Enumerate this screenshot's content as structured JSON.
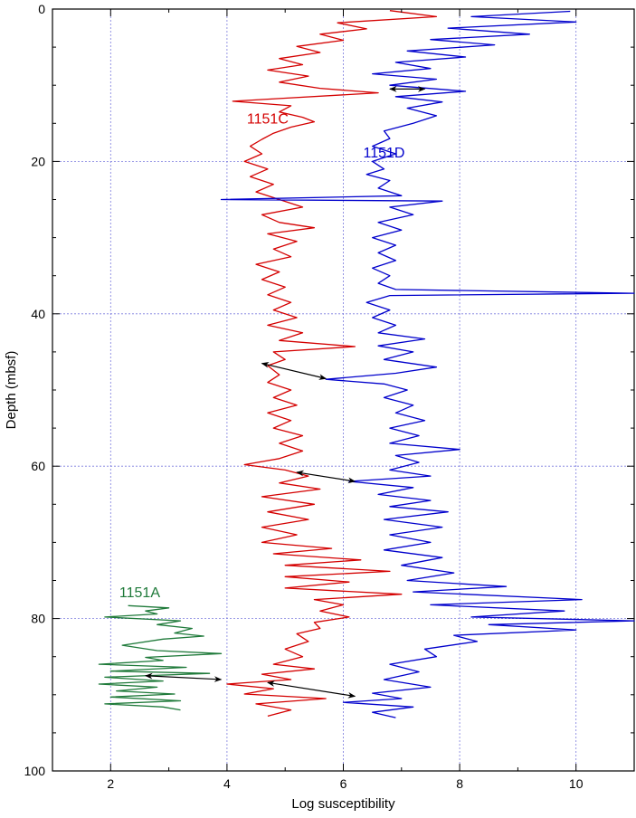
{
  "chart_data": {
    "type": "line",
    "title": "",
    "xlabel": "Log susceptibility",
    "ylabel": "Depth (mbsf)",
    "xlim": [
      1,
      11
    ],
    "ylim": [
      100,
      0
    ],
    "x_ticks": [
      2,
      4,
      6,
      8,
      10
    ],
    "y_ticks": [
      0,
      20,
      40,
      60,
      80,
      100
    ],
    "grid": true,
    "orientation": "x=value, y=depth (depth increases downward)",
    "colors": {
      "1151A": "#1f7a3a",
      "1151C": "#d40000",
      "1151D": "#0000cc",
      "grid": "#7b7bdd",
      "arrow": "#000000"
    },
    "series": [
      {
        "name": "1151C",
        "color": "#d40000",
        "points": [
          [
            6.8,
            0.2
          ],
          [
            7.6,
            1
          ],
          [
            5.9,
            1.8
          ],
          [
            6.4,
            2.6
          ],
          [
            5.6,
            3.3
          ],
          [
            6.0,
            4.1
          ],
          [
            5.2,
            4.9
          ],
          [
            5.6,
            5.7
          ],
          [
            4.9,
            6.5
          ],
          [
            5.3,
            7.3
          ],
          [
            4.7,
            8.0
          ],
          [
            5.4,
            8.8
          ],
          [
            4.9,
            9.6
          ],
          [
            5.6,
            10.4
          ],
          [
            6.6,
            11.0
          ],
          [
            5.0,
            11.7
          ],
          [
            4.1,
            12.1
          ],
          [
            5.1,
            12.7
          ],
          [
            4.9,
            13.5
          ],
          [
            5.3,
            14.2
          ],
          [
            5.5,
            14.8
          ],
          [
            5.1,
            15.5
          ],
          [
            4.8,
            16.3
          ],
          [
            4.6,
            17.1
          ],
          [
            4.4,
            18.0
          ],
          [
            4.6,
            19.0
          ],
          [
            4.3,
            20.0
          ],
          [
            4.7,
            21.0
          ],
          [
            4.4,
            22.0
          ],
          [
            4.8,
            23.0
          ],
          [
            4.5,
            24.0
          ],
          [
            4.9,
            25.0
          ],
          [
            5.3,
            26.0
          ],
          [
            4.6,
            27.0
          ],
          [
            4.9,
            28.0
          ],
          [
            5.5,
            28.7
          ],
          [
            4.7,
            29.5
          ],
          [
            5.2,
            30.5
          ],
          [
            4.8,
            31.5
          ],
          [
            5.1,
            32.5
          ],
          [
            4.5,
            33.5
          ],
          [
            4.9,
            34.5
          ],
          [
            4.6,
            35.5
          ],
          [
            5.0,
            36.5
          ],
          [
            4.7,
            37.5
          ],
          [
            5.1,
            38.5
          ],
          [
            4.8,
            39.5
          ],
          [
            5.2,
            40.5
          ],
          [
            4.7,
            41.5
          ],
          [
            5.3,
            42.5
          ],
          [
            4.9,
            43.5
          ],
          [
            6.2,
            44.3
          ],
          [
            4.8,
            45.0
          ],
          [
            5.0,
            46.0
          ],
          [
            4.7,
            46.8
          ],
          [
            4.9,
            48.0
          ],
          [
            4.7,
            49.0
          ],
          [
            5.1,
            50.0
          ],
          [
            4.8,
            51.0
          ],
          [
            5.2,
            52.0
          ],
          [
            4.7,
            53.0
          ],
          [
            5.1,
            54.0
          ],
          [
            4.8,
            55.0
          ],
          [
            5.3,
            56.0
          ],
          [
            4.9,
            57.0
          ],
          [
            5.3,
            58.0
          ],
          [
            4.9,
            59.0
          ],
          [
            4.3,
            59.8
          ],
          [
            5.0,
            60.5
          ],
          [
            5.4,
            61.3
          ],
          [
            4.9,
            62.2
          ],
          [
            5.6,
            63.0
          ],
          [
            4.6,
            64.0
          ],
          [
            5.5,
            65.0
          ],
          [
            4.7,
            66.0
          ],
          [
            5.4,
            67.0
          ],
          [
            4.6,
            68.0
          ],
          [
            5.2,
            69.0
          ],
          [
            4.6,
            70.0
          ],
          [
            5.8,
            70.8
          ],
          [
            4.8,
            71.5
          ],
          [
            6.3,
            72.3
          ],
          [
            5.0,
            73.0
          ],
          [
            6.8,
            73.8
          ],
          [
            5.0,
            74.5
          ],
          [
            6.1,
            75.2
          ],
          [
            5.0,
            76.0
          ],
          [
            7.0,
            76.8
          ],
          [
            5.5,
            77.5
          ],
          [
            6.0,
            78.2
          ],
          [
            5.6,
            79.0
          ],
          [
            6.1,
            79.8
          ],
          [
            5.5,
            80.5
          ],
          [
            5.6,
            81.3
          ],
          [
            5.2,
            82.0
          ],
          [
            5.4,
            83.0
          ],
          [
            5.0,
            84.0
          ],
          [
            5.3,
            85.0
          ],
          [
            4.8,
            86.0
          ],
          [
            5.5,
            86.6
          ],
          [
            4.6,
            87.3
          ],
          [
            5.1,
            88.0
          ],
          [
            4.0,
            88.6
          ],
          [
            4.8,
            89.2
          ],
          [
            4.3,
            89.9
          ],
          [
            5.7,
            90.5
          ],
          [
            4.5,
            91.2
          ],
          [
            5.1,
            92.0
          ],
          [
            4.7,
            92.8
          ]
        ]
      },
      {
        "name": "1151D",
        "color": "#0000cc",
        "points": [
          [
            9.9,
            0.3
          ],
          [
            8.2,
            1.0
          ],
          [
            10.0,
            1.7
          ],
          [
            7.8,
            2.5
          ],
          [
            9.2,
            3.3
          ],
          [
            7.5,
            4.0
          ],
          [
            8.6,
            4.7
          ],
          [
            7.1,
            5.5
          ],
          [
            8.1,
            6.3
          ],
          [
            6.9,
            7.0
          ],
          [
            7.5,
            7.8
          ],
          [
            6.5,
            8.5
          ],
          [
            7.6,
            9.2
          ],
          [
            6.8,
            10.0
          ],
          [
            8.1,
            10.8
          ],
          [
            6.9,
            11.5
          ],
          [
            7.7,
            12.2
          ],
          [
            7.1,
            13.0
          ],
          [
            7.6,
            14.0
          ],
          [
            7.2,
            15.0
          ],
          [
            6.7,
            16.0
          ],
          [
            6.8,
            17.0
          ],
          [
            6.5,
            18.0
          ],
          [
            6.9,
            19.0
          ],
          [
            6.5,
            20.0
          ],
          [
            6.7,
            21.0
          ],
          [
            6.4,
            21.7
          ],
          [
            6.8,
            22.5
          ],
          [
            6.6,
            23.5
          ],
          [
            7.0,
            24.5
          ],
          [
            3.9,
            25.0
          ],
          [
            7.7,
            25.2
          ],
          [
            6.8,
            26.0
          ],
          [
            7.2,
            27.0
          ],
          [
            6.6,
            28.0
          ],
          [
            7.0,
            29.0
          ],
          [
            6.5,
            30.0
          ],
          [
            6.9,
            31.0
          ],
          [
            6.6,
            32.0
          ],
          [
            6.9,
            33.0
          ],
          [
            6.5,
            34.0
          ],
          [
            6.8,
            35.0
          ],
          [
            6.6,
            36.0
          ],
          [
            6.9,
            36.8
          ],
          [
            11.0,
            37.3
          ],
          [
            6.8,
            37.6
          ],
          [
            6.4,
            38.5
          ],
          [
            6.8,
            39.5
          ],
          [
            6.5,
            40.5
          ],
          [
            6.9,
            41.5
          ],
          [
            6.6,
            42.5
          ],
          [
            7.4,
            43.3
          ],
          [
            6.6,
            44.2
          ],
          [
            7.2,
            45.0
          ],
          [
            6.7,
            46.0
          ],
          [
            7.6,
            47.0
          ],
          [
            6.9,
            47.8
          ],
          [
            5.7,
            48.6
          ],
          [
            6.7,
            49.2
          ],
          [
            7.1,
            50.0
          ],
          [
            6.7,
            51.0
          ],
          [
            7.2,
            52.0
          ],
          [
            6.9,
            53.0
          ],
          [
            7.4,
            54.0
          ],
          [
            6.8,
            55.0
          ],
          [
            7.3,
            56.0
          ],
          [
            6.8,
            57.0
          ],
          [
            8.0,
            57.8
          ],
          [
            6.9,
            58.6
          ],
          [
            7.3,
            59.5
          ],
          [
            6.8,
            60.5
          ],
          [
            7.5,
            61.3
          ],
          [
            6.1,
            62.0
          ],
          [
            7.2,
            62.8
          ],
          [
            6.6,
            63.7
          ],
          [
            7.5,
            64.5
          ],
          [
            6.8,
            65.3
          ],
          [
            7.8,
            66.0
          ],
          [
            6.7,
            67.0
          ],
          [
            7.7,
            68.0
          ],
          [
            6.8,
            69.0
          ],
          [
            7.5,
            70.0
          ],
          [
            6.7,
            71.0
          ],
          [
            7.7,
            72.0
          ],
          [
            7.0,
            73.0
          ],
          [
            7.9,
            74.0
          ],
          [
            7.1,
            75.0
          ],
          [
            8.8,
            75.8
          ],
          [
            7.2,
            76.5
          ],
          [
            10.1,
            77.5
          ],
          [
            7.5,
            78.2
          ],
          [
            9.8,
            79.0
          ],
          [
            8.2,
            79.8
          ],
          [
            11.0,
            80.3
          ],
          [
            8.5,
            80.8
          ],
          [
            10.0,
            81.5
          ],
          [
            7.9,
            82.2
          ],
          [
            8.3,
            83.0
          ],
          [
            7.4,
            84.0
          ],
          [
            7.6,
            85.0
          ],
          [
            6.8,
            86.0
          ],
          [
            7.3,
            87.0
          ],
          [
            6.7,
            88.0
          ],
          [
            7.5,
            89.0
          ],
          [
            6.5,
            89.8
          ],
          [
            7.0,
            90.5
          ],
          [
            6.0,
            91.0
          ],
          [
            7.2,
            91.6
          ],
          [
            6.5,
            92.3
          ],
          [
            6.9,
            93.0
          ]
        ]
      },
      {
        "name": "1151A",
        "color": "#1f7a3a",
        "points": [
          [
            2.3,
            78.3
          ],
          [
            3.0,
            78.6
          ],
          [
            2.6,
            79.0
          ],
          [
            2.8,
            79.4
          ],
          [
            1.9,
            79.8
          ],
          [
            3.2,
            80.3
          ],
          [
            2.8,
            80.8
          ],
          [
            3.4,
            81.3
          ],
          [
            3.1,
            81.9
          ],
          [
            3.6,
            82.3
          ],
          [
            2.9,
            82.7
          ],
          [
            2.2,
            83.5
          ],
          [
            2.8,
            84.2
          ],
          [
            3.9,
            84.6
          ],
          [
            2.6,
            85.1
          ],
          [
            2.9,
            85.5
          ],
          [
            1.8,
            86.0
          ],
          [
            3.3,
            86.4
          ],
          [
            2.0,
            86.9
          ],
          [
            3.7,
            87.2
          ],
          [
            1.9,
            87.7
          ],
          [
            2.9,
            88.2
          ],
          [
            1.8,
            88.6
          ],
          [
            2.8,
            89.0
          ],
          [
            2.1,
            89.5
          ],
          [
            3.1,
            89.9
          ],
          [
            2.0,
            90.3
          ],
          [
            3.2,
            90.8
          ],
          [
            1.9,
            91.2
          ],
          [
            2.9,
            91.6
          ],
          [
            3.2,
            92.0
          ]
        ]
      }
    ],
    "series_labels": [
      {
        "text": "1151C",
        "x": 4.7,
        "y": 15
      },
      {
        "text": "1151D",
        "x": 6.7,
        "y": 19.5
      },
      {
        "text": "1151A",
        "x": 2.5,
        "y": 77.2
      }
    ],
    "correlation_arrows": [
      {
        "from": [
          6.8,
          10.5
        ],
        "to": [
          7.4,
          10.5
        ]
      },
      {
        "from": [
          4.6,
          46.5
        ],
        "to": [
          5.7,
          48.5
        ]
      },
      {
        "from": [
          5.2,
          60.8
        ],
        "to": [
          6.2,
          62.0
        ]
      },
      {
        "from": [
          2.6,
          87.5
        ],
        "to": [
          3.9,
          88.0
        ]
      },
      {
        "from": [
          4.7,
          88.4
        ],
        "to": [
          6.2,
          90.2
        ]
      }
    ]
  }
}
